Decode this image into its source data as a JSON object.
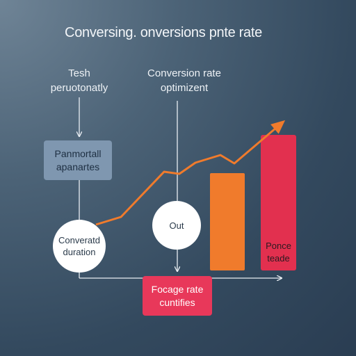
{
  "title": "Conversing. onversions pnte rate",
  "labels": {
    "left": [
      "Tesh",
      "peruotonatly"
    ],
    "mid": [
      "Conversion rate",
      "optimizent"
    ]
  },
  "nodes": {
    "panel": [
      "Panmortall",
      "apanartes"
    ],
    "circle_left": [
      "Converatd",
      "duration"
    ],
    "circle_mid": "Out",
    "bottom_box": [
      "Focage rate",
      "cuntifies"
    ],
    "bar_red_label": [
      "Ponce",
      "teade"
    ]
  },
  "colors": {
    "orange": "#f07b2c",
    "red": "#e2304f",
    "pink_red": "#e8385a",
    "panel_blue": "#7f97b0"
  }
}
